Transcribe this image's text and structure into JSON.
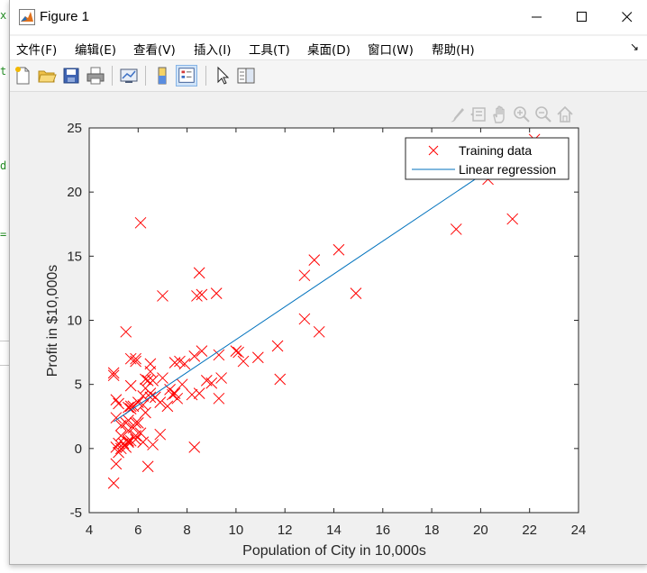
{
  "window": {
    "title": "Figure 1"
  },
  "background_app": {
    "snippets": [
      "x",
      "t",
      "d",
      "="
    ]
  },
  "menu": {
    "items": [
      "文件(F)",
      "编辑(E)",
      "查看(V)",
      "插入(I)",
      "工具(T)",
      "桌面(D)",
      "窗口(W)",
      "帮助(H)"
    ],
    "overflow_glyph": "↘"
  },
  "toolbar": {
    "icons": [
      "new-figure-icon",
      "open-file-icon",
      "save-icon",
      "print-icon",
      "link-plot-icon",
      "colorbar-icon",
      "legend-icon",
      "pointer-icon",
      "property-inspector-icon"
    ]
  },
  "axes_toolbar": {
    "icons": [
      "brush-icon",
      "datatip-icon",
      "pan-icon",
      "zoom-in-icon",
      "zoom-out-icon",
      "home-icon"
    ]
  },
  "colors": {
    "training": "#ff0000",
    "regression": "#0072bd",
    "axes": "#262626",
    "title_text": "#000000"
  },
  "chart_data": {
    "type": "scatter",
    "xlabel": "Population of City in 10,000s",
    "ylabel": "Profit in $10,000s",
    "xlim": [
      4,
      24
    ],
    "ylim": [
      -5,
      25
    ],
    "xticks": [
      4,
      6,
      8,
      10,
      12,
      14,
      16,
      18,
      20,
      22,
      24
    ],
    "yticks": [
      -5,
      0,
      5,
      10,
      15,
      20,
      25
    ],
    "grid": false,
    "legend_position": "top-right",
    "series": [
      {
        "name": "Training data",
        "type": "scatter",
        "marker": "x",
        "color": "#ff0000",
        "points": [
          [
            6.1,
            17.6
          ],
          [
            5.5,
            9.1
          ],
          [
            8.5,
            13.7
          ],
          [
            7.0,
            11.9
          ],
          [
            5.9,
            6.8
          ],
          [
            8.4,
            11.9
          ],
          [
            7.5,
            4.3
          ],
          [
            8.6,
            12.0
          ],
          [
            6.5,
            6.6
          ],
          [
            5.1,
            3.8
          ],
          [
            5.7,
            3.3
          ],
          [
            14.2,
            15.5
          ],
          [
            5.7,
            3.1
          ],
          [
            6.5,
            4.3
          ],
          [
            5.9,
            1.0
          ],
          [
            5.8,
            3.3
          ],
          [
            7.2,
            3.3
          ],
          [
            5.0,
            5.9
          ],
          [
            8.3,
            7.2
          ],
          [
            5.7,
            7.0
          ],
          [
            6.5,
            4.0
          ],
          [
            5.2,
            0.4
          ],
          [
            5.7,
            4.9
          ],
          [
            5.1,
            0.1
          ],
          [
            8.6,
            7.6
          ],
          [
            6.9,
            3.6
          ],
          [
            5.9,
            7.0
          ],
          [
            6.5,
            6.0
          ],
          [
            5.4,
            0.4
          ],
          [
            5.6,
            1.4
          ],
          [
            6.2,
            4.1
          ],
          [
            6.7,
            4.0
          ],
          [
            5.2,
            -0.3
          ],
          [
            5.6,
            0.6
          ],
          [
            5.5,
            2.0
          ],
          [
            5.1,
            -1.2
          ],
          [
            5.3,
            1.0
          ],
          [
            5.0,
            5.7
          ],
          [
            5.1,
            2.4
          ],
          [
            6.4,
            -1.4
          ],
          [
            6.9,
            1.1
          ],
          [
            9.3,
            7.3
          ],
          [
            5.9,
            0.7
          ],
          [
            5.2,
            3.5
          ],
          [
            7.4,
            4.2
          ],
          [
            6.3,
            4.7
          ],
          [
            7.7,
            6.8
          ],
          [
            5.8,
            1.6
          ],
          [
            5.3,
            0.0
          ],
          [
            5.0,
            -2.7
          ],
          [
            6.0,
            3.6
          ],
          [
            5.5,
            0.1
          ],
          [
            8.3,
            0.1
          ],
          [
            6.3,
            5.4
          ],
          [
            6.4,
            5.3
          ],
          [
            7.3,
            4.6
          ],
          [
            9.0,
            5.1
          ],
          [
            10.3,
            6.8
          ],
          [
            10.1,
            7.5
          ],
          [
            9.4,
            5.5
          ],
          [
            7.8,
            5.0
          ],
          [
            9.2,
            12.1
          ],
          [
            11.7,
            8.0
          ],
          [
            11.8,
            5.4
          ],
          [
            12.8,
            13.5
          ],
          [
            13.4,
            9.1
          ],
          [
            12.8,
            10.1
          ],
          [
            13.2,
            14.7
          ],
          [
            14.9,
            12.1
          ],
          [
            19.0,
            17.1
          ],
          [
            21.3,
            17.9
          ],
          [
            20.3,
            21.0
          ],
          [
            22.2,
            24.1
          ],
          [
            10.0,
            7.6
          ],
          [
            8.2,
            4.2
          ],
          [
            7.9,
            6.6
          ],
          [
            8.8,
            5.3
          ],
          [
            10.9,
            7.1
          ],
          [
            9.3,
            3.9
          ],
          [
            7.5,
            6.7
          ],
          [
            6.6,
            0.3
          ],
          [
            5.7,
            0.6
          ],
          [
            5.3,
            1.8
          ],
          [
            6.0,
            2.0
          ],
          [
            5.6,
            0.5
          ],
          [
            5.9,
            2.0
          ],
          [
            6.2,
            0.5
          ],
          [
            6.6,
            5.3
          ],
          [
            7.0,
            5.5
          ],
          [
            7.6,
            3.9
          ],
          [
            8.5,
            4.3
          ],
          [
            6.1,
            1.2
          ],
          [
            5.6,
            3.2
          ],
          [
            6.3,
            2.8
          ],
          [
            5.6,
            2.2
          ],
          [
            6.2,
            3.4
          ]
        ]
      },
      {
        "name": "Linear regression",
        "type": "line",
        "color": "#0072bd",
        "points": [
          [
            5.0,
            2.1
          ],
          [
            22.2,
            24.1
          ]
        ]
      }
    ]
  }
}
